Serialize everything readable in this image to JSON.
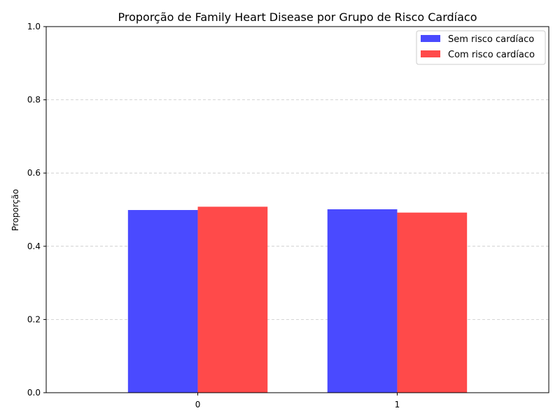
{
  "chart_data": {
    "type": "bar",
    "title": "Proporção de Family Heart Disease por Grupo de Risco Cardíaco",
    "xlabel": "",
    "ylabel": "Proporção",
    "categories": [
      "0",
      "1"
    ],
    "series": [
      {
        "name": "Sem risco cardíaco",
        "values": [
          0.499,
          0.501
        ],
        "color": "#4a4aff"
      },
      {
        "name": "Com risco cardíaco",
        "values": [
          0.508,
          0.492
        ],
        "color": "#ff4a4a"
      }
    ],
    "ylim": [
      0,
      1.0
    ],
    "yticks": [
      "0.0",
      "0.2",
      "0.4",
      "0.6",
      "0.8",
      "1.0"
    ],
    "grid": "y-dashed",
    "legend_position": "top-right"
  }
}
